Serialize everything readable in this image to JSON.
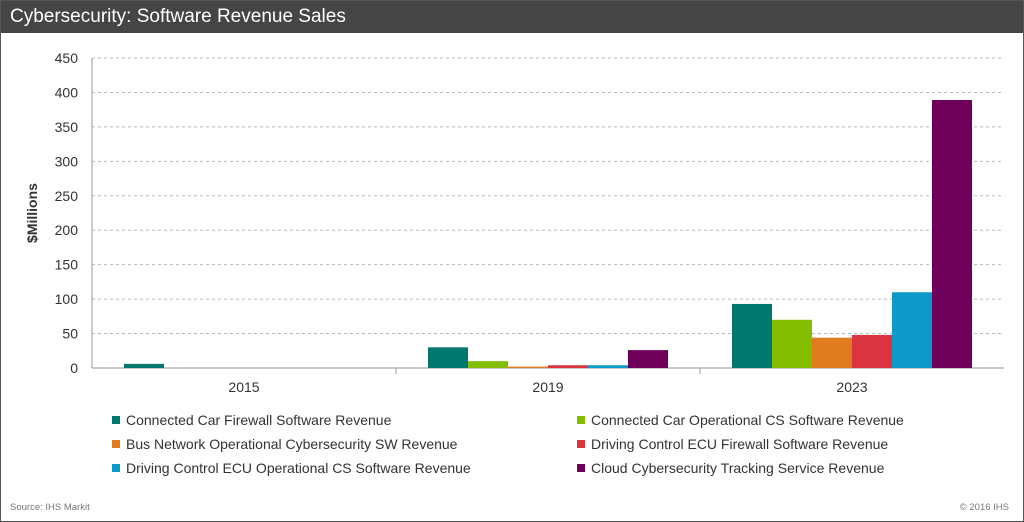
{
  "header": {
    "title": "Cybersecurity: Software Revenue Sales"
  },
  "footer": {
    "source": "Source: IHS Markit",
    "copyright": "© 2016 IHS"
  },
  "chart_data": {
    "type": "bar",
    "title": "Cybersecurity: Software Revenue Sales",
    "xlabel": "",
    "ylabel": "$Millions",
    "ylim": [
      0,
      450
    ],
    "yticks": [
      0,
      50,
      100,
      150,
      200,
      250,
      300,
      350,
      400,
      450
    ],
    "grid": true,
    "legend_position": "bottom",
    "categories": [
      "2015",
      "2019",
      "2023"
    ],
    "series": [
      {
        "name": "Connected Car Firewall Software Revenue",
        "color": "#00786f",
        "values": [
          6,
          30,
          93
        ]
      },
      {
        "name": "Connected Car Operational CS Software Revenue",
        "color": "#84bd00",
        "values": [
          0,
          10,
          70
        ]
      },
      {
        "name": "Bus Network Operational Cybersecurity SW Revenue",
        "color": "#e07b1f",
        "values": [
          0,
          2,
          44
        ]
      },
      {
        "name": "Driving Control ECU Firewall Software Revenue",
        "color": "#d9343f",
        "values": [
          0,
          4,
          48
        ]
      },
      {
        "name": "Driving Control ECU Operational CS Software Revenue",
        "color": "#0e9ac8",
        "values": [
          0,
          4,
          110
        ]
      },
      {
        "name": "Cloud Cybersecurity Tracking Service Revenue",
        "color": "#6d0058",
        "values": [
          0,
          26,
          389
        ]
      }
    ]
  }
}
